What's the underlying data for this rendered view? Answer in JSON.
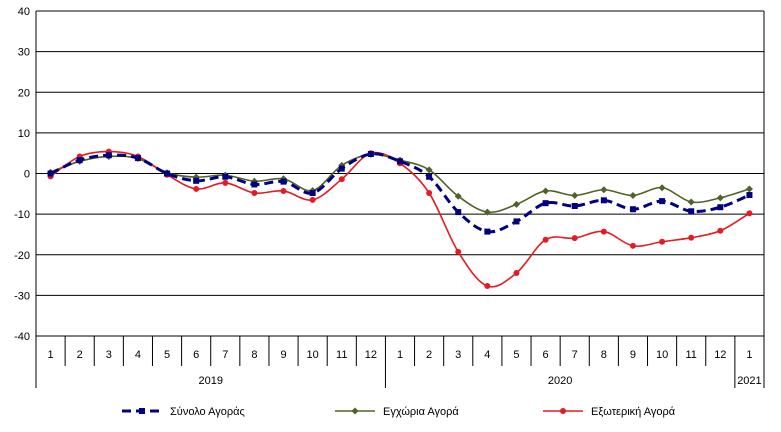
{
  "chart_data": {
    "type": "line",
    "title": "",
    "xlabel": "",
    "ylabel": "",
    "ylim": [
      -40,
      40
    ],
    "yticks": [
      40,
      30,
      20,
      10,
      0,
      -10,
      -20,
      -30,
      -40
    ],
    "grid": true,
    "legend_position": "bottom",
    "categories": [
      "1",
      "2",
      "3",
      "4",
      "5",
      "6",
      "7",
      "8",
      "9",
      "10",
      "11",
      "12",
      "1",
      "2",
      "3",
      "4",
      "5",
      "6",
      "7",
      "8",
      "9",
      "10",
      "11",
      "12",
      "1"
    ],
    "year_groups": [
      {
        "label": "2019",
        "start": 0,
        "end": 11
      },
      {
        "label": "2020",
        "start": 12,
        "end": 23
      },
      {
        "label": "2021",
        "start": 24,
        "end": 24
      }
    ],
    "series": [
      {
        "name": "Σύνολο Αγοράς",
        "color": "#000080",
        "style": "dashed-square",
        "values": [
          0,
          3.3,
          4.5,
          3.8,
          0,
          -1.8,
          -0.8,
          -2.7,
          -2,
          -4.8,
          1.2,
          4.8,
          3,
          -0.8,
          -9.5,
          -14.3,
          -11.8,
          -7.3,
          -8,
          -6.6,
          -8.8,
          -6.8,
          -9.3,
          -8.3,
          -5.3
        ]
      },
      {
        "name": "Εγχώρια Αγορά",
        "color": "#4F6228",
        "style": "line-diamond",
        "values": [
          0.3,
          3,
          4.2,
          3.7,
          0.2,
          -0.9,
          -0.4,
          -1.9,
          -1.3,
          -4.2,
          2,
          4.7,
          3.3,
          0.9,
          -5.6,
          -9.5,
          -7.6,
          -4.3,
          -5.4,
          -4,
          -5.4,
          -3.5,
          -7,
          -6,
          -3.8
        ]
      },
      {
        "name": "Εξωτερική Αγορά",
        "color": "#E31B23",
        "style": "line-circle",
        "values": [
          -0.7,
          4.2,
          5.4,
          4.2,
          -0.3,
          -3.8,
          -2.3,
          -4.8,
          -4.3,
          -6.5,
          -1.4,
          5,
          2.5,
          -4.8,
          -19.3,
          -27.7,
          -24.5,
          -16.3,
          -15.9,
          -14.3,
          -17.8,
          -16.8,
          -15.8,
          -14.1,
          -9.8
        ]
      }
    ]
  }
}
